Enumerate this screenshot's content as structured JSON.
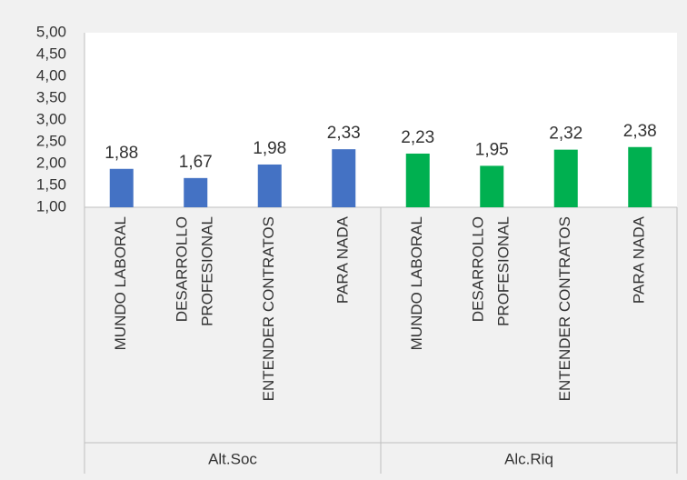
{
  "chart_data": {
    "type": "bar",
    "title": "",
    "xlabel": "",
    "ylabel": "",
    "ylim": [
      1.0,
      5.0
    ],
    "y_ticks": [
      "1,00",
      "1,50",
      "2,00",
      "2,50",
      "3,00",
      "3,50",
      "4,00",
      "4,50",
      "5,00"
    ],
    "grid": false,
    "legend": "none",
    "groups": [
      {
        "label": "Alt.Soc",
        "color": "#4472c4",
        "categories": [
          {
            "label_lines": [
              "MUNDO LABORAL"
            ],
            "value": 1.88,
            "display": "1,88"
          },
          {
            "label_lines": [
              "DESARROLLO",
              "PROFESIONAL"
            ],
            "value": 1.67,
            "display": "1,67"
          },
          {
            "label_lines": [
              "ENTENDER CONTRATOS"
            ],
            "value": 1.98,
            "display": "1,98"
          },
          {
            "label_lines": [
              "PARA NADA"
            ],
            "value": 2.33,
            "display": "2,33"
          }
        ]
      },
      {
        "label": "Alc.Riq",
        "color": "#00b050",
        "categories": [
          {
            "label_lines": [
              "MUNDO LABORAL"
            ],
            "value": 2.23,
            "display": "2,23"
          },
          {
            "label_lines": [
              "DESARROLLO",
              "PROFESIONAL"
            ],
            "value": 1.95,
            "display": "1,95"
          },
          {
            "label_lines": [
              "ENTENDER CONTRATOS"
            ],
            "value": 2.32,
            "display": "2,32"
          },
          {
            "label_lines": [
              "PARA NADA"
            ],
            "value": 2.38,
            "display": "2,38"
          }
        ]
      }
    ]
  }
}
